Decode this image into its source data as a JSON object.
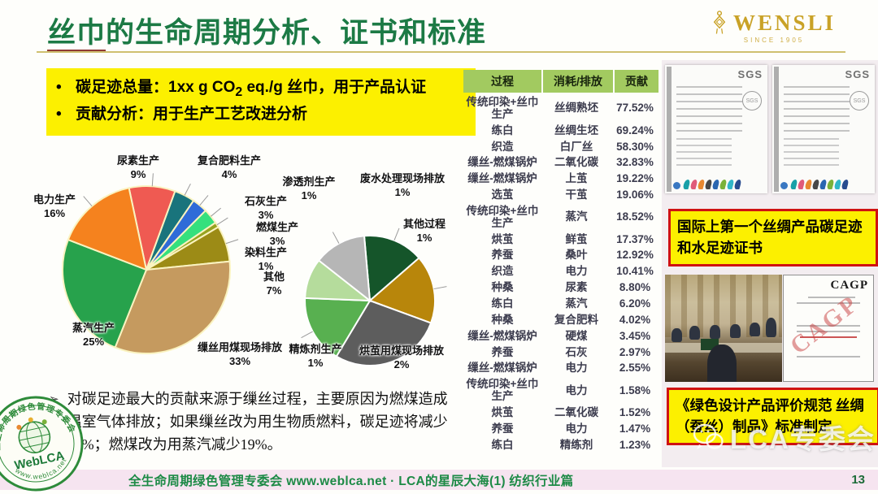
{
  "slide": {
    "title_underlined": "丝巾",
    "title_rest": "的生命周期分析、证书和标准",
    "footer": "全生命周期绿色管理专委会 www.weblca.net · LCA的星辰大海(1) 纺织行业篇",
    "page_number": "13"
  },
  "brand": {
    "name": "WENSLI",
    "tagline": "SINCE 1905",
    "icon": "chinese-knot",
    "color": "#c9a227"
  },
  "highlight_box": {
    "bullet_marker": "•",
    "bullet1_label": "碳足迹总量：",
    "bullet1_co": "1xx g CO",
    "bullet1_sub": "2",
    "bullet1_rest": " eq./g 丝巾，用于产品认证",
    "bullet2_label": "贡献分析：",
    "bullet2_rest": "用于生产工艺改进分析"
  },
  "analysis_note": {
    "marker": "➢",
    "text": "对碳足迹最大的贡献来源于缫丝过程，主要原因为燃煤造成温室气体排放；如果缫丝改为用生物质燃料，碳足迹将减少35%；燃煤改为用蒸汽减少19%。"
  },
  "chart_data": [
    {
      "type": "pie",
      "position": "left",
      "unit": "%",
      "start_angle_deg": -12,
      "separator_color": "#faf3c0",
      "slices": [
        {
          "label": "尿素生产",
          "value": 9,
          "value_label": "9%",
          "color": "#ef5a52"
        },
        {
          "label": "复合肥料生产",
          "value": 4,
          "value_label": "4%",
          "color": "#19747c"
        },
        {
          "label": "石灰生产",
          "value": 3,
          "value_label": "3%",
          "color": "#2f6bd8"
        },
        {
          "label": "燃煤生产",
          "value": 3,
          "value_label": "3%",
          "color": "#35e07d"
        },
        {
          "label": "染料生产",
          "value": 1,
          "value_label": "1%",
          "color": "#97a21f"
        },
        {
          "label": "其他",
          "value": 7,
          "value_label": "7%",
          "color": "#9c8b16"
        },
        {
          "label": "缫丝用煤现场排放",
          "value": 33,
          "value_label": "33%",
          "color": "#c59a5f"
        },
        {
          "label": "蒸汽生产",
          "value": 25,
          "value_label": "25%",
          "color": "#27a24c"
        },
        {
          "label": "电力生产",
          "value": 16,
          "value_label": "16%",
          "color": "#f5821e"
        }
      ]
    },
    {
      "type": "pie",
      "position": "right",
      "unit": "%",
      "start_angle_deg": -5,
      "separator_color": "#ffffff",
      "slices": [
        {
          "label": "废水处理现场排放",
          "value": 1,
          "value_label": "1%",
          "weight": 15,
          "color": "#15552a"
        },
        {
          "label": "其他过程",
          "value": 1,
          "value_label": "1%",
          "weight": 17,
          "color": "#b8860b"
        },
        {
          "label": "烘茧用煤现场排放",
          "value": 2,
          "value_label": "2%",
          "weight": 28,
          "color": "#5d5d5d"
        },
        {
          "label": "精炼剂生产",
          "value": 1,
          "value_label": "1%",
          "weight": 17,
          "color": "#58b050"
        },
        {
          "label": "",
          "value": null,
          "value_label": "",
          "weight": 10,
          "color": "#b5dc9c"
        },
        {
          "label": "渗透剂生产",
          "value": 1,
          "value_label": "1%",
          "weight": 13,
          "color": "#b6b6b6"
        }
      ]
    }
  ],
  "table": {
    "headers": [
      "过程",
      "消耗/排放",
      "贡献"
    ],
    "rows": [
      [
        "传统印染+丝巾生产",
        "丝绸熟坯",
        "77.52%"
      ],
      [
        "练白",
        "丝绸生坯",
        "69.24%"
      ],
      [
        "织造",
        "白厂丝",
        "58.30%"
      ],
      [
        "缫丝-燃煤锅炉",
        "二氧化碳",
        "32.83%"
      ],
      [
        "缫丝-燃煤锅炉",
        "上茧",
        "19.22%"
      ],
      [
        "选茧",
        "干茧",
        "19.06%"
      ],
      [
        "传统印染+丝巾生产",
        "蒸汽",
        "18.52%"
      ],
      [
        "烘茧",
        "鲜茧",
        "17.37%"
      ],
      [
        "养蚕",
        "桑叶",
        "12.92%"
      ],
      [
        "织造",
        "电力",
        "10.41%"
      ],
      [
        "种桑",
        "尿素",
        "8.80%"
      ],
      [
        "练白",
        "蒸汽",
        "6.20%"
      ],
      [
        "种桑",
        "复合肥料",
        "4.02%"
      ],
      [
        "缫丝-燃煤锅炉",
        "硬煤",
        "3.45%"
      ],
      [
        "养蚕",
        "石灰",
        "2.97%"
      ],
      [
        "缫丝-燃煤锅炉",
        "电力",
        "2.55%"
      ],
      [
        "传统印染+丝巾生产",
        "电力",
        "1.58%"
      ],
      [
        "烘茧",
        "二氧化碳",
        "1.52%"
      ],
      [
        "养蚕",
        "电力",
        "1.47%"
      ],
      [
        "练白",
        "精练剂",
        "1.23%"
      ]
    ]
  },
  "certificates": {
    "issuer": "SGS",
    "caption": "国际上第一个丝绸产品碳足迹和水足迹证书",
    "logo_colors": [
      "#18a0a8",
      "#e05a7a",
      "#e88830",
      "#484848",
      "#2a66b0",
      "#7ab23a",
      "#30b6c8",
      "#274b8f"
    ]
  },
  "standard": {
    "doc_label": "CAGP",
    "caption": "《绿色设计产品评价规范 丝绸（蚕丝）制品》标准制定"
  },
  "weblca_badge": {
    "name": "WebLCA",
    "url": "www.weblca.net",
    "ring_text": "全生命周期绿色管理专委会",
    "color": "#2e8b3a"
  },
  "watermark": {
    "text": "LCA专委会",
    "icon": "wechat"
  }
}
